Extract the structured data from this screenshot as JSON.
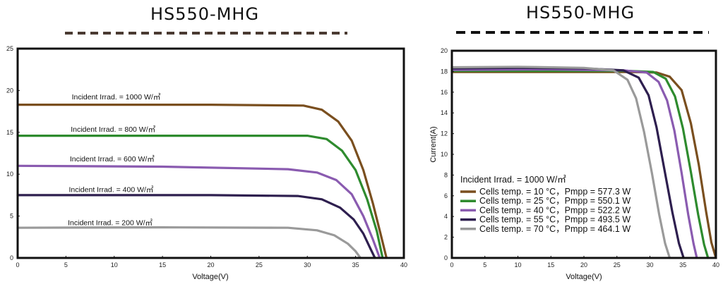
{
  "colors": {
    "brown": "#7a4f1f",
    "green": "#2e8b2e",
    "purple": "#8a5bb0",
    "darkpurple": "#2e1f4f",
    "gray": "#9a9a9a",
    "dash_left": "#4a3a32",
    "dash_right": "#111111"
  },
  "chart_data": [
    {
      "type": "line",
      "title": "HS550-MHG",
      "xlabel": "Voltage(V)",
      "ylabel": "",
      "xlim": [
        0,
        40
      ],
      "ylim": [
        0,
        25
      ],
      "xticks": [
        "0",
        "5",
        "10",
        "15",
        "20",
        "25",
        "30",
        "35",
        "40"
      ],
      "yticks": [
        "0",
        "5",
        "10",
        "15",
        "20",
        "25"
      ],
      "series": [
        {
          "name": "Incident Irrad. = 1000 W/㎡",
          "color": "brown",
          "x": [
            0,
            20,
            29.6,
            31.5,
            33.2,
            34.6,
            35.8,
            36.8,
            37.6,
            38.2
          ],
          "y": [
            18.3,
            18.3,
            18.2,
            17.7,
            16.3,
            14,
            10.5,
            6.5,
            2.8,
            0
          ]
        },
        {
          "name": "Incident Irrad. = 800 W/㎡",
          "color": "green",
          "x": [
            0,
            20,
            30,
            32,
            33.6,
            35,
            36.2,
            37.2,
            37.8
          ],
          "y": [
            14.6,
            14.6,
            14.6,
            14.2,
            12.8,
            10.5,
            7.0,
            3.2,
            0
          ]
        },
        {
          "name": "Incident Irrad. = 600 W/㎡",
          "color": "purple",
          "x": [
            0,
            15,
            28,
            31,
            33,
            34.6,
            35.8,
            36.8,
            37.5
          ],
          "y": [
            11.0,
            10.9,
            10.6,
            10.2,
            9.3,
            7.6,
            5.0,
            2.2,
            0
          ]
        },
        {
          "name": "Incident Irrad. = 400 W/㎡",
          "color": "darkpurple",
          "x": [
            0,
            20,
            29,
            31.5,
            33.4,
            34.8,
            35.8,
            36.5,
            37.0
          ],
          "y": [
            7.5,
            7.5,
            7.4,
            7.0,
            6.0,
            4.6,
            2.9,
            1.2,
            0
          ]
        },
        {
          "name": "Incident Irrad. = 200 W/㎡",
          "color": "gray",
          "x": [
            0,
            15,
            28,
            31,
            32.8,
            34.2,
            35.0,
            35.5
          ],
          "y": [
            3.6,
            3.65,
            3.6,
            3.3,
            2.7,
            1.7,
            0.8,
            0
          ]
        }
      ],
      "annotations": [
        {
          "text": "Incident Irrad. = 1000 W/㎡",
          "x": 5.6,
          "y": 18.95
        },
        {
          "text": "Incident Irrad. = 800 W/㎡",
          "x": 5.5,
          "y": 15.05
        },
        {
          "text": "Incident Irrad. = 600 W/㎡",
          "x": 5.4,
          "y": 11.55
        },
        {
          "text": "Incident Irrad. = 400 W/㎡",
          "x": 5.3,
          "y": 7.85
        },
        {
          "text": "Incident Irrad. = 200 W/㎡",
          "x": 5.2,
          "y": 3.9
        }
      ]
    },
    {
      "type": "line",
      "title": "HS550-MHG",
      "xlabel": "Voltage(V)",
      "ylabel": "Current(A)",
      "xlim": [
        0,
        40
      ],
      "ylim": [
        0,
        20
      ],
      "xticks": [
        "0",
        "5",
        "10",
        "15",
        "20",
        "25",
        "30",
        "35",
        "40"
      ],
      "yticks": [
        "0",
        "2",
        "4",
        "6",
        "8",
        "10",
        "12",
        "14",
        "16",
        "18",
        "20"
      ],
      "legend_title": "Incident Irrad. = 1000 W/㎡",
      "series": [
        {
          "name": "Cells temp. = 10 °C，Pmpp = 577.3 W",
          "color": "brown",
          "x": [
            0,
            15,
            27,
            31,
            33,
            34.8,
            36.2,
            37.4,
            38.5,
            39.3,
            40
          ],
          "y": [
            17.95,
            17.95,
            17.95,
            17.9,
            17.5,
            16.2,
            13.0,
            9.0,
            4.5,
            1.5,
            0
          ]
        },
        {
          "name": "Cells temp. = 25 °C，Pmpp = 550.1 W",
          "color": "green",
          "x": [
            0,
            15,
            27,
            30.5,
            32.4,
            33.8,
            35.0,
            36.2,
            37.3,
            38.2,
            38.8
          ],
          "y": [
            18.05,
            18.05,
            18.05,
            17.95,
            17.3,
            15.6,
            12.5,
            8.3,
            4.2,
            1.3,
            0
          ]
        },
        {
          "name": "Cells temp. = 40 °C，Pmpp = 522.2 W",
          "color": "purple",
          "x": [
            0,
            15,
            26,
            29.5,
            31.3,
            32.6,
            33.7,
            34.8,
            35.8,
            36.6,
            37.1
          ],
          "y": [
            18.15,
            18.2,
            18.1,
            17.9,
            17.0,
            15.2,
            12.3,
            8.2,
            4.2,
            1.4,
            0
          ]
        },
        {
          "name": "Cells temp. = 55 °C，Pmpp = 493.5 W",
          "color": "darkpurple",
          "x": [
            0,
            10,
            20,
            26,
            28.3,
            29.8,
            31.0,
            32.2,
            33.4,
            34.4,
            35.1
          ],
          "y": [
            18.3,
            18.35,
            18.3,
            18.1,
            17.4,
            15.7,
            12.6,
            8.5,
            4.4,
            1.4,
            0
          ]
        },
        {
          "name": "Cells temp. = 70 °C，Pmpp = 464.1 W",
          "color": "gray",
          "x": [
            0,
            10,
            20,
            24.5,
            26.6,
            27.9,
            29.1,
            30.3,
            31.4,
            32.3,
            33.0
          ],
          "y": [
            18.4,
            18.45,
            18.35,
            18.1,
            17.2,
            15.4,
            12.2,
            8.2,
            4.2,
            1.4,
            0
          ]
        }
      ]
    }
  ]
}
